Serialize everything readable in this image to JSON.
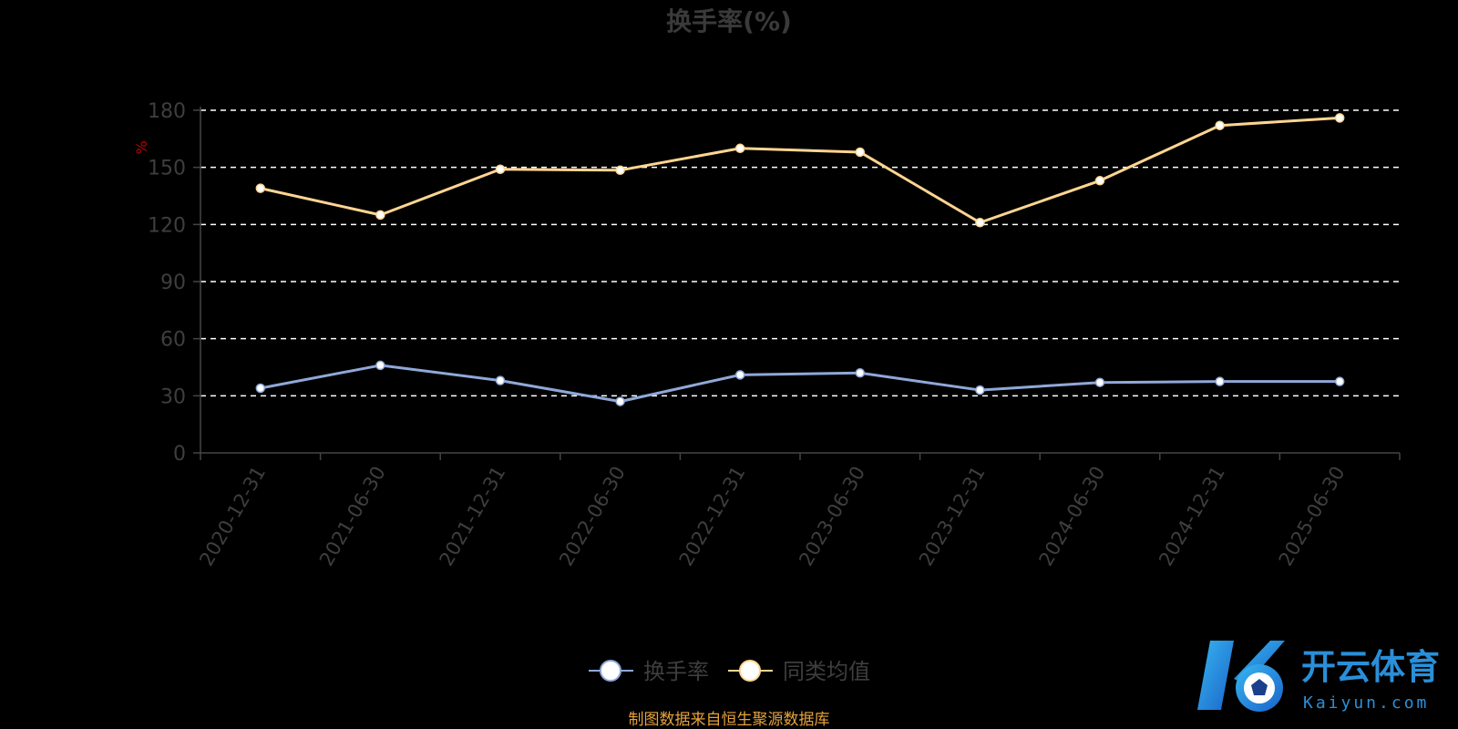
{
  "chart_data": {
    "type": "line",
    "title": "换手率(%)",
    "ylabel": "%",
    "xlabel": "",
    "ylim": [
      0,
      180
    ],
    "yticks": [
      0,
      30,
      60,
      90,
      120,
      150,
      180
    ],
    "grid": true,
    "legend_position": "bottom",
    "categories": [
      "2020-12-31",
      "2021-06-30",
      "2021-12-31",
      "2022-06-30",
      "2022-12-31",
      "2023-06-30",
      "2023-12-31",
      "2024-06-30",
      "2024-12-31",
      "2025-06-30"
    ],
    "series": [
      {
        "name": "换手率",
        "color": "#8fa8d8",
        "values": [
          34,
          46,
          38,
          27,
          41,
          42,
          33,
          37,
          37.5,
          37.5
        ]
      },
      {
        "name": "同类均值",
        "color": "#ffd591",
        "values": [
          139,
          125,
          149,
          148.5,
          160,
          158,
          121,
          143,
          172,
          176
        ]
      }
    ]
  },
  "source": "制图数据来自恒生聚源数据库",
  "watermark": {
    "cn": "开云体育",
    "en": "Kaiyun.com"
  }
}
